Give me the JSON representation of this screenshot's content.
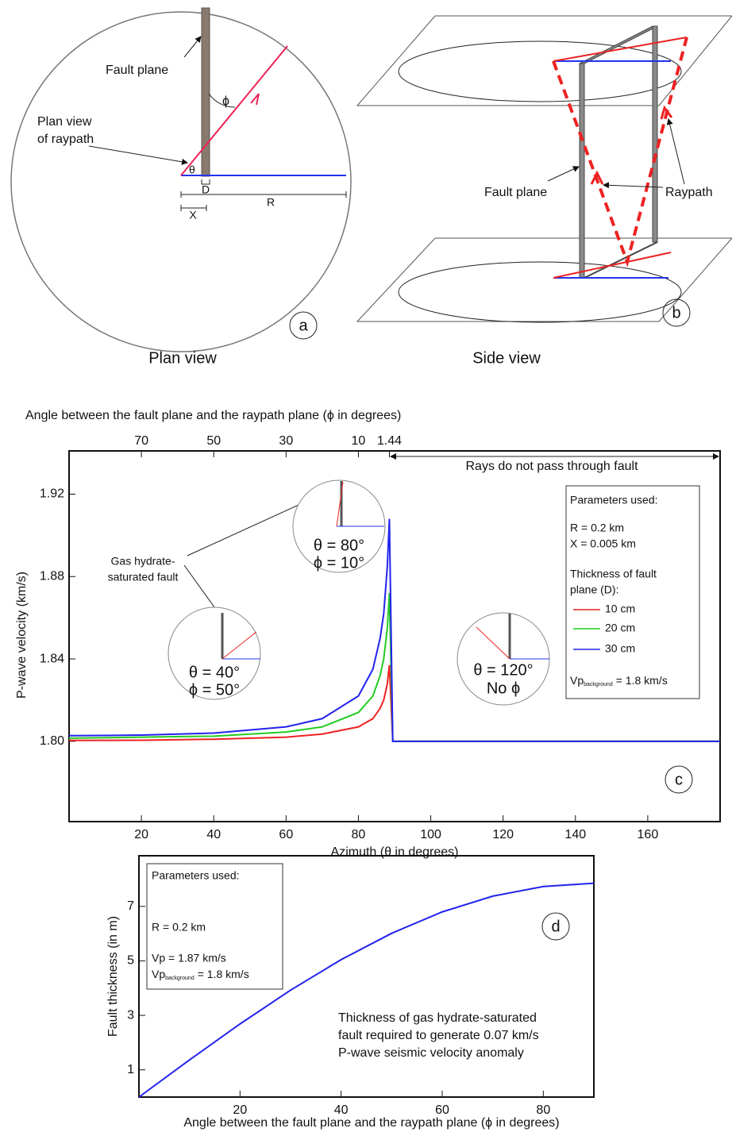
{
  "panel_a": {
    "fault_plane": "Fault plane",
    "raypath_label": [
      "Plan view",
      "of raypath"
    ],
    "phi": "ϕ",
    "theta": "θ",
    "d": "D",
    "x": "X",
    "r": "R",
    "label": "a",
    "caption": "Plan view"
  },
  "panel_b": {
    "fault_plane": "Fault plane",
    "raypath": "Raypath",
    "label": "b",
    "caption": "Side view"
  },
  "chart_data": [
    {
      "type": "line",
      "panel_label": "c",
      "xlabel": "Azimuth (θ in degrees)",
      "ylabel": "P-wave velocity (km/s)",
      "x2label": "Angle between the fault plane and the raypath plane (ϕ in degrees)",
      "xlim": [
        0,
        180
      ],
      "xticks": [
        20,
        40,
        60,
        80,
        100,
        120,
        140,
        160
      ],
      "x2lim": [
        90,
        -90
      ],
      "x2ticks": [
        70,
        50,
        30,
        10,
        1.44
      ],
      "ylim": [
        1.761,
        1.941
      ],
      "yticks": [
        {
          "value": 1.8,
          "label": "1.80"
        },
        1.84,
        1.88,
        1.92
      ],
      "x": [
        0,
        20,
        40,
        60,
        70,
        80,
        84,
        86,
        87,
        88,
        88.56,
        89.5,
        180
      ],
      "series": [
        {
          "name": "10 cm",
          "color": "#ee2222",
          "values": [
            1.8004,
            1.8005,
            1.801,
            1.802,
            1.8035,
            1.807,
            1.811,
            1.816,
            1.82,
            1.828,
            1.837,
            1.8,
            1.8
          ]
        },
        {
          "name": "20 cm",
          "color": "#22cc22",
          "values": [
            1.8015,
            1.802,
            1.8025,
            1.8045,
            1.807,
            1.814,
            1.822,
            1.832,
            1.84,
            1.855,
            1.872,
            1.8,
            1.8
          ]
        },
        {
          "name": "30 cm",
          "color": "#2222ee",
          "values": [
            1.8027,
            1.803,
            1.804,
            1.807,
            1.811,
            1.822,
            1.835,
            1.85,
            1.862,
            1.885,
            1.908,
            1.8,
            1.8
          ]
        }
      ],
      "annotations": {
        "no_fault": "Rays do not pass through fault",
        "fault_label": [
          "Gas hydrate-",
          "saturated fault"
        ],
        "inset_1": [
          "θ = 40°",
          "ϕ = 50°"
        ],
        "inset_2": [
          "θ = 80°",
          "ϕ = 10°"
        ],
        "inset_3": [
          "θ = 120°",
          "No ϕ"
        ]
      },
      "parameters": [
        "Parameters used:",
        "R = 0.2 km",
        "X = 0.005 km"
      ],
      "legend_title": [
        "Thickness of fault",
        "plane (D):"
      ],
      "background": {
        "symbol": "Vp",
        "subscript": "background",
        "text": "= 1.8 km/s"
      }
    },
    {
      "type": "line",
      "panel_label": "d",
      "xlabel": "Angle between the fault plane and the raypath plane (ϕ in degrees)",
      "ylabel": "Fault thickness (in m)",
      "xlim": [
        0,
        90
      ],
      "xticks": [
        20,
        40,
        60,
        80
      ],
      "ylim": [
        0,
        8.86
      ],
      "yticks": [
        1,
        3,
        5,
        7
      ],
      "x": [
        0,
        10,
        20,
        30,
        40,
        50,
        60,
        70,
        80,
        90
      ],
      "series": [
        {
          "color": "#2222ee",
          "values": [
            0,
            1.363,
            2.685,
            3.925,
            5.046,
            6.013,
            6.798,
            7.377,
            7.731,
            7.85
          ]
        }
      ],
      "parameters": [
        "Parameters used:",
        "R = 0.2 km",
        "Vp = 1.87 km/s"
      ],
      "background": {
        "symbol": "Vp",
        "subscript": "background",
        "text": "= 1.8 km/s"
      },
      "annotation": [
        "Thickness of gas hydrate-saturated",
        "fault required to generate 0.07 km/s",
        "P-wave seismic velocity anomaly"
      ]
    }
  ]
}
